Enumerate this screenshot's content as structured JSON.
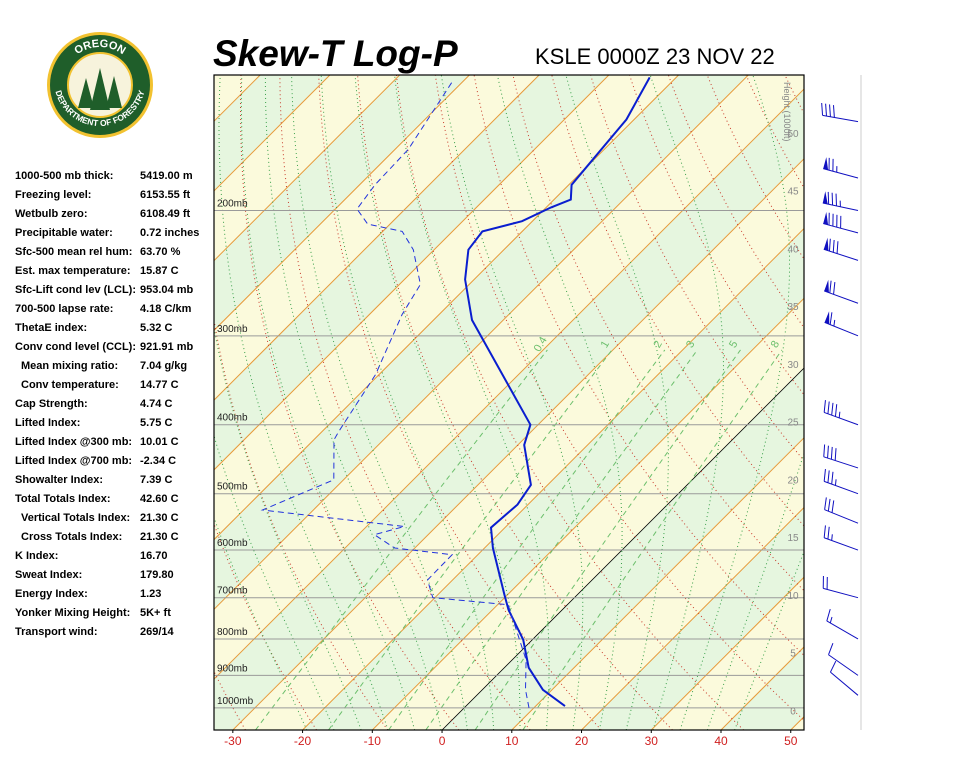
{
  "logo": {
    "top": "OREGON",
    "bottom": "DEPARTMENT OF FORESTRY"
  },
  "stats": [
    {
      "label": "1000-500 mb thick:",
      "value": "5419.00 m"
    },
    {
      "label": "Freezing level:",
      "value": "6153.55 ft"
    },
    {
      "label": "Wetbulb zero:",
      "value": "6108.49 ft"
    },
    {
      "label": "Precipitable water:",
      "value": "0.72 inches"
    },
    {
      "label": "Sfc-500 mean rel hum:",
      "value": "63.70 %"
    },
    {
      "label": "Est. max temperature:",
      "value": "15.87 C"
    },
    {
      "label": "Sfc-Lift cond lev (LCL):",
      "value": "953.04 mb"
    },
    {
      "label": "700-500 lapse rate:",
      "value": "4.18 C/km"
    },
    {
      "label": "ThetaE index:",
      "value": "5.32 C"
    },
    {
      "label": "Conv cond level (CCL):",
      "value": "921.91 mb",
      "sub": [
        {
          "label": "Mean mixing ratio:",
          "value": "7.04 g/kg"
        },
        {
          "label": "Conv temperature:",
          "value": "14.77 C"
        }
      ]
    },
    {
      "label": "Cap Strength:",
      "value": "4.74 C"
    },
    {
      "label": "Lifted Index:",
      "value": "5.75 C"
    },
    {
      "label": "Lifted Index @300 mb:",
      "value": "10.01 C"
    },
    {
      "label": "Lifted Index @700 mb:",
      "value": "-2.34 C"
    },
    {
      "label": "Showalter Index:",
      "value": "7.39 C"
    },
    {
      "label": "Total Totals Index:",
      "value": "42.60 C",
      "sub": [
        {
          "label": "Vertical Totals Index:",
          "value": "21.30 C"
        },
        {
          "label": "Cross Totals Index:",
          "value": "21.30 C"
        }
      ]
    },
    {
      "label": "K Index:",
      "value": "16.70"
    },
    {
      "label": "Sweat Index:",
      "value": "179.80"
    },
    {
      "label": "Energy Index:",
      "value": "1.23"
    },
    {
      "label": "Yonker Mixing Height:",
      "value": "5K+ ft"
    },
    {
      "label": "Transport wind:",
      "value": "269/14"
    }
  ],
  "chart_data": {
    "type": "skew-t",
    "title": "Skew-T Log-P",
    "subtitle": "KSLE 0000Z 23 NOV 22",
    "xlim": [
      -32.7,
      51.9
    ],
    "xticks": [
      -30,
      -20,
      -10,
      0,
      10,
      20,
      30,
      40,
      50
    ],
    "ylim": [
      1074,
      129
    ],
    "log_y": true,
    "yticks": [
      {
        "value": 200,
        "label": "200mb"
      },
      {
        "value": 300,
        "label": "300mb"
      },
      {
        "value": 400,
        "label": "400mb"
      },
      {
        "value": 500,
        "label": "500mb"
      },
      {
        "value": 600,
        "label": "600mb"
      },
      {
        "value": 700,
        "label": "700mb"
      },
      {
        "value": 800,
        "label": "800mb"
      },
      {
        "value": 900,
        "label": "900mb"
      },
      {
        "value": 1000,
        "label": "1000mb"
      }
    ],
    "height_label": "Height (1000ft)",
    "height_lim": [
      -1.7,
      55
    ],
    "height_ticks": [
      0,
      5,
      10,
      15,
      20,
      25,
      30,
      35,
      40,
      45,
      50
    ],
    "mixing_ratios": [
      0.4,
      1,
      2,
      3,
      5,
      8
    ],
    "series": [
      {
        "color": "#0a1ecf",
        "style": "solid",
        "pressure": [
          994,
          943,
          878,
          802,
          728,
          694,
          596,
          558,
          518,
          486,
          427,
          400,
          285,
          250,
          227,
          214,
          207,
          198,
          193,
          184,
          149,
          130
        ],
        "values": [
          14.2,
          8.7,
          3.5,
          -1.3,
          -7.7,
          -10.4,
          -18.8,
          -22,
          -21.5,
          -22.4,
          -29.1,
          -31.1,
          -54.5,
          -61.3,
          -65.1,
          -65.7,
          -61.5,
          -59.3,
          -57.6,
          -59.6,
          -61.1,
          -63.8
        ]
      },
      {
        "color": "#2233dd",
        "style": "dashed",
        "pressure": [
          1000,
          943,
          856,
          716,
          700,
          661,
          609,
          596,
          571,
          556,
          527,
          478,
          420,
          409,
          340,
          280,
          254,
          227,
          214,
          209,
          199,
          184,
          164,
          131
        ],
        "values": [
          9.3,
          6.2,
          2.0,
          -8.5,
          -20.3,
          -23.6,
          -23.7,
          -32.9,
          -37.7,
          -34.6,
          -57.3,
          -51.4,
          -57.1,
          -57.6,
          -60.5,
          -65.3,
          -67,
          -73,
          -77.2,
          -83.2,
          -86.9,
          -87.8,
          -88.1,
          -91.6
        ]
      }
    ],
    "winds": [
      {
        "pressure": 150,
        "direction": 280,
        "speed": 40
      },
      {
        "pressure": 180,
        "direction": 285,
        "speed": 75
      },
      {
        "pressure": 200,
        "direction": 282,
        "speed": 85
      },
      {
        "pressure": 215,
        "direction": 285,
        "speed": 90
      },
      {
        "pressure": 235,
        "direction": 288,
        "speed": 80
      },
      {
        "pressure": 270,
        "direction": 290,
        "speed": 70
      },
      {
        "pressure": 300,
        "direction": 292,
        "speed": 65
      },
      {
        "pressure": 400,
        "direction": 290,
        "speed": 45
      },
      {
        "pressure": 460,
        "direction": 288,
        "speed": 40
      },
      {
        "pressure": 500,
        "direction": 290,
        "speed": 35
      },
      {
        "pressure": 550,
        "direction": 292,
        "speed": 30
      },
      {
        "pressure": 600,
        "direction": 290,
        "speed": 25
      },
      {
        "pressure": 700,
        "direction": 285,
        "speed": 20
      },
      {
        "pressure": 800,
        "direction": 300,
        "speed": 15
      },
      {
        "pressure": 900,
        "direction": 305,
        "speed": 10
      },
      {
        "pressure": 960,
        "direction": 310,
        "speed": 10
      }
    ]
  }
}
